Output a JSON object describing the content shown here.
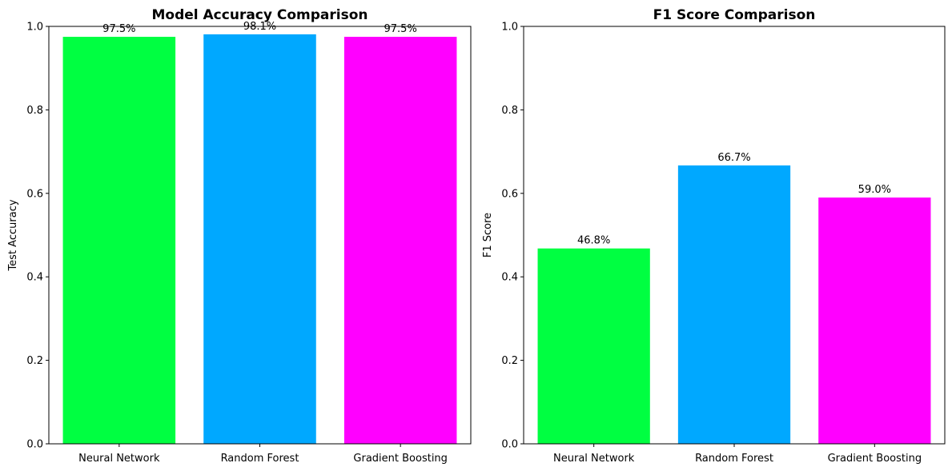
{
  "chart_data": [
    {
      "type": "bar",
      "title": "Model Accuracy Comparison",
      "xlabel": "",
      "ylabel": "Test Accuracy",
      "ylim": [
        0,
        1.0
      ],
      "yticks": [
        "0.0",
        "0.2",
        "0.4",
        "0.6",
        "0.8",
        "1.0"
      ],
      "categories": [
        "Neural Network",
        "Random Forest",
        "Gradient Boosting"
      ],
      "values": [
        0.975,
        0.981,
        0.975
      ],
      "labels": [
        "97.5%",
        "98.1%",
        "97.5%"
      ],
      "colors": [
        "#00ff41",
        "#00a8ff",
        "#ff00ff"
      ],
      "grid": false
    },
    {
      "type": "bar",
      "title": "F1 Score Comparison",
      "xlabel": "",
      "ylabel": "F1 Score",
      "ylim": [
        0,
        1.0
      ],
      "yticks": [
        "0.0",
        "0.2",
        "0.4",
        "0.6",
        "0.8",
        "1.0"
      ],
      "categories": [
        "Neural Network",
        "Random Forest",
        "Gradient Boosting"
      ],
      "values": [
        0.468,
        0.667,
        0.59
      ],
      "labels": [
        "46.8%",
        "66.7%",
        "59.0%"
      ],
      "colors": [
        "#00ff41",
        "#00a8ff",
        "#ff00ff"
      ],
      "grid": false
    }
  ]
}
